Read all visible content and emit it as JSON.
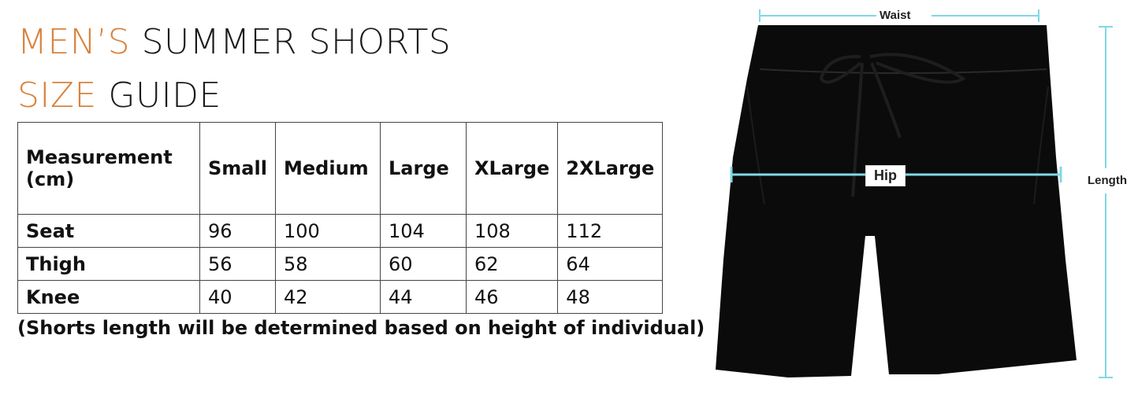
{
  "title": {
    "line1_accent": "MEN’S",
    "line1_rest": "SUMMER SHORTS",
    "line2_accent": "SIZE",
    "line2_rest": "GUIDE",
    "accent_color": "#d9823c"
  },
  "table": {
    "headers": [
      "Measurement (cm)",
      "Small",
      "Medium",
      "Large",
      "XLarge",
      "2XLarge"
    ],
    "rows": [
      {
        "label": "Seat",
        "values": [
          "96",
          "100",
          "104",
          "108",
          "112"
        ]
      },
      {
        "label": "Thigh",
        "values": [
          "56",
          "58",
          "60",
          "62",
          "64"
        ]
      },
      {
        "label": "Knee",
        "values": [
          "40",
          "42",
          "44",
          "46",
          "48"
        ]
      }
    ]
  },
  "note": "(Shorts length will be determined based on height of individual)",
  "diagram": {
    "waist_label": "Waist",
    "hip_label": "Hip",
    "length_label": "Length",
    "measure_line_color": "#7fd8e6",
    "garment_color": "#0b0b0b"
  }
}
